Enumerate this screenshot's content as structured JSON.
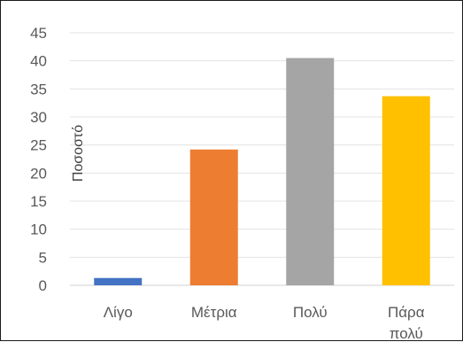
{
  "chart_data": {
    "type": "bar",
    "title": "",
    "xlabel": "",
    "ylabel": "Ποσοστό",
    "ylim": [
      0,
      45
    ],
    "yticks": [
      0,
      5,
      10,
      15,
      20,
      25,
      30,
      35,
      40,
      45
    ],
    "grid": true,
    "legend": "none",
    "categories": [
      [
        "Λίγο"
      ],
      [
        "Μέτρια"
      ],
      [
        "Πολύ"
      ],
      [
        "Πάρα",
        "πολύ"
      ]
    ],
    "values": [
      1.3,
      24.2,
      40.5,
      33.7
    ],
    "colors": [
      "#4472C4",
      "#ED7D31",
      "#A5A5A5",
      "#FFC000"
    ]
  }
}
